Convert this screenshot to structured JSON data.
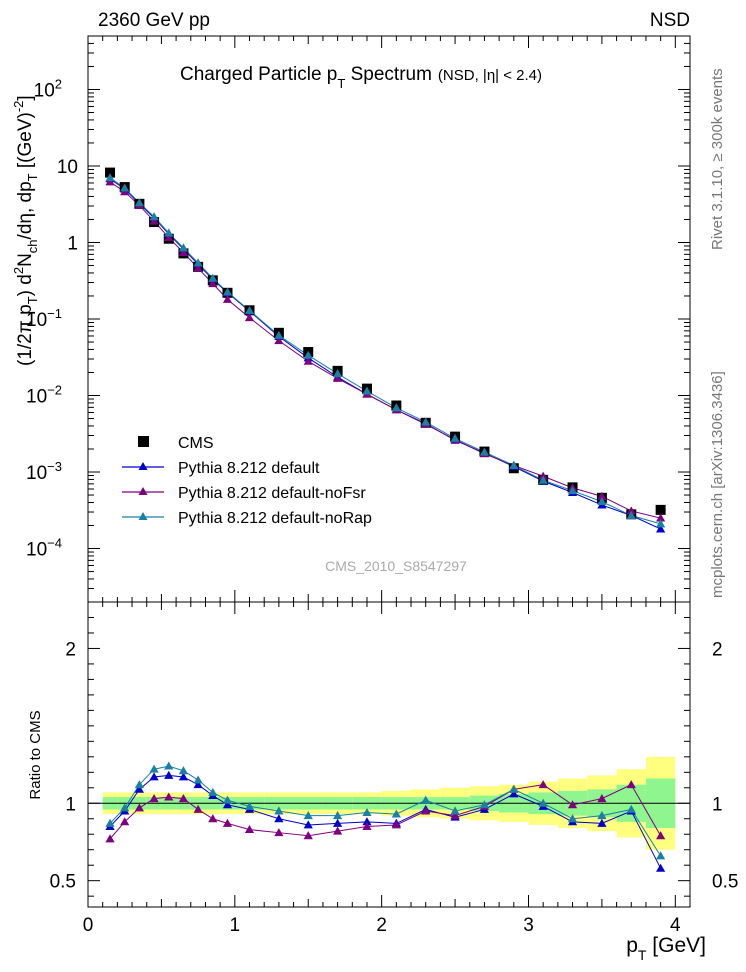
{
  "header": {
    "energy_label": "2360 GeV pp",
    "process_label": "NSD"
  },
  "side_labels": {
    "rivet": "Rivet 3.1.10, ≥ 300k events",
    "mcplots": "mcplots.cern.ch [arXiv:1306.3436]"
  },
  "watermark": "CMS_2010_S8547297",
  "title": {
    "main": "Charged Particle p",
    "sub": "T",
    "tail": " Spectrum",
    "qualifier": "(NSD, |η| < 2.4)"
  },
  "y_axis_label": {
    "p1": "(1/2π p",
    "p2": "T",
    "p3": ") d",
    "p4": "2",
    "p5": "N",
    "p6": "ch",
    "p7": "/dη, dp",
    "p8": "T",
    "p9": " [(GeV)",
    "p10": "-2",
    "p11": "]"
  },
  "ratio_axis_label": "Ratio to CMS",
  "x_axis_label": {
    "p1": "p",
    "p2": "T",
    "p3": " [GeV]"
  },
  "legend": [
    {
      "label": "CMS",
      "color": "#000000",
      "marker": "square"
    },
    {
      "label": "Pythia 8.212 default",
      "color": "#0000cc",
      "marker": "triangle"
    },
    {
      "label": "Pythia 8.212 default-noFsr",
      "color": "#7f007f",
      "marker": "triangle"
    },
    {
      "label": "Pythia 8.212 default-noRap",
      "color": "#1a80a6",
      "marker": "triangle"
    }
  ],
  "chart_data": {
    "type": "scatter",
    "x": [
      0.15,
      0.25,
      0.35,
      0.45,
      0.55,
      0.65,
      0.75,
      0.85,
      0.95,
      1.1,
      1.3,
      1.5,
      1.7,
      1.9,
      2.1,
      2.3,
      2.5,
      2.7,
      2.9,
      3.1,
      3.3,
      3.5,
      3.7,
      3.9
    ],
    "xlim": [
      0,
      4.1
    ],
    "xticks": [
      0,
      1,
      2,
      3,
      4
    ],
    "main": {
      "ylog": true,
      "ylim": [
        2e-05,
        500
      ],
      "yticks": [
        {
          "value": 0.0001,
          "base": "10",
          "exp": "−4"
        },
        {
          "value": 0.001,
          "base": "10",
          "exp": "−3"
        },
        {
          "value": 0.01,
          "base": "10",
          "exp": "−2"
        },
        {
          "value": 0.1,
          "base": "10",
          "exp": "−1"
        },
        {
          "value": 1,
          "base": "1",
          "exp": ""
        },
        {
          "value": 10,
          "base": "10",
          "exp": ""
        },
        {
          "value": 100,
          "base": "10",
          "exp": "2"
        }
      ],
      "series": [
        {
          "name": "CMS",
          "values": [
            8.2,
            5.3,
            3.2,
            1.85,
            1.12,
            0.72,
            0.48,
            0.32,
            0.22,
            0.13,
            0.066,
            0.037,
            0.021,
            0.0123,
            0.0074,
            0.0044,
            0.0029,
            0.00185,
            0.00112,
            0.00079,
            0.00063,
            0.00046,
            0.00028,
            0.00032
          ]
        },
        {
          "name": "Pythia 8.212 default",
          "values": [
            6.8,
            5.0,
            3.2,
            2.1,
            1.29,
            0.82,
            0.52,
            0.33,
            0.22,
            0.127,
            0.059,
            0.031,
            0.0174,
            0.0104,
            0.0065,
            0.0043,
            0.0026,
            0.00177,
            0.00118,
            0.00076,
            0.00054,
            0.00037,
            0.00027,
            0.00018
          ]
        },
        {
          "name": "Pythia 8.212 default-noFsr",
          "values": [
            6.2,
            4.6,
            3.05,
            1.9,
            1.16,
            0.74,
            0.46,
            0.29,
            0.18,
            0.104,
            0.052,
            0.028,
            0.0167,
            0.0104,
            0.0065,
            0.0042,
            0.00265,
            0.00173,
            0.00122,
            0.00088,
            0.00062,
            0.00048,
            0.00031,
            0.00025
          ]
        },
        {
          "name": "Pythia 8.212 default-noRap",
          "values": [
            7.0,
            5.15,
            3.3,
            2.17,
            1.33,
            0.85,
            0.54,
            0.34,
            0.225,
            0.129,
            0.061,
            0.0335,
            0.0193,
            0.0114,
            0.0069,
            0.0045,
            0.00275,
            0.00182,
            0.00122,
            0.00078,
            0.00057,
            0.00041,
            0.00027,
            0.00021
          ]
        }
      ]
    },
    "ratio": {
      "ylim": [
        0.33,
        2.3
      ],
      "yticks": [
        0.5,
        1,
        2
      ],
      "band_inner": [
        0.04,
        0.04,
        0.04,
        0.04,
        0.04,
        0.04,
        0.04,
        0.04,
        0.04,
        0.04,
        0.04,
        0.04,
        0.04,
        0.04,
        0.04,
        0.04,
        0.04,
        0.05,
        0.06,
        0.07,
        0.08,
        0.09,
        0.12,
        0.16
      ],
      "band_outer": [
        0.07,
        0.07,
        0.07,
        0.07,
        0.07,
        0.07,
        0.07,
        0.07,
        0.07,
        0.07,
        0.07,
        0.07,
        0.07,
        0.07,
        0.08,
        0.09,
        0.1,
        0.11,
        0.12,
        0.14,
        0.16,
        0.18,
        0.22,
        0.3
      ],
      "series": [
        {
          "name": "Pythia 8.212 default",
          "values": [
            0.85,
            0.95,
            1.09,
            1.17,
            1.18,
            1.17,
            1.12,
            1.05,
            0.99,
            0.96,
            0.9,
            0.86,
            0.87,
            0.88,
            0.87,
            0.96,
            0.91,
            0.96,
            1.06,
            0.98,
            0.88,
            0.87,
            0.95,
            0.58
          ]
        },
        {
          "name": "Pythia 8.212 default-noFsr",
          "values": [
            0.77,
            0.88,
            0.97,
            1.03,
            1.04,
            1.03,
            0.96,
            0.9,
            0.87,
            0.83,
            0.81,
            0.79,
            0.82,
            0.85,
            0.86,
            0.95,
            0.92,
            0.98,
            1.09,
            1.12,
            0.99,
            1.03,
            1.12,
            0.79
          ]
        },
        {
          "name": "Pythia 8.212 default-noRap",
          "values": [
            0.87,
            0.97,
            1.12,
            1.22,
            1.24,
            1.21,
            1.15,
            1.07,
            1.02,
            0.98,
            0.95,
            0.92,
            0.92,
            0.94,
            0.93,
            1.02,
            0.95,
            0.99,
            1.09,
            1.0,
            0.9,
            0.92,
            0.96,
            0.66
          ]
        }
      ]
    }
  }
}
